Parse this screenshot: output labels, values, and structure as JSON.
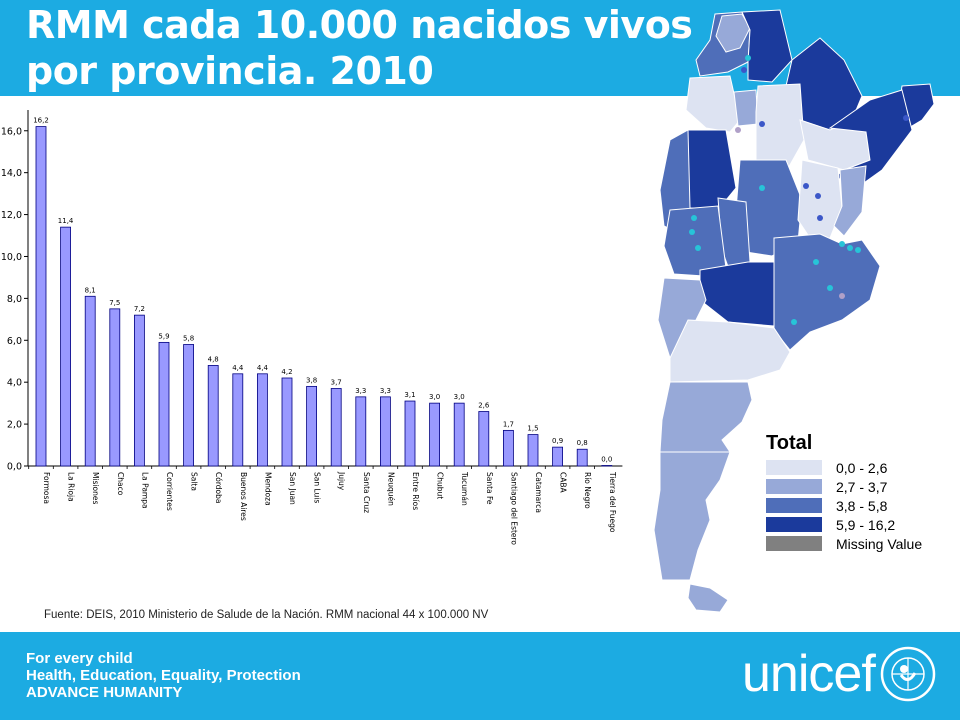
{
  "title": {
    "line1": "RMM cada 10.000 nacidos vivos",
    "line2": "por provincia. 2010"
  },
  "chart_data": {
    "type": "bar",
    "categories": [
      "Formosa",
      "La Rioja",
      "Misiones",
      "Chaco",
      "La Pampa",
      "Corrientes",
      "Salta",
      "Córdoba",
      "Buenos Aires",
      "Mendoza",
      "San Juan",
      "San Luis",
      "Jujuy",
      "Santa Cruz",
      "Neuquén",
      "Entre Ríos",
      "Chubut",
      "Tucumán",
      "Santa Fe",
      "Santiago del Estero",
      "Catamarca",
      "CABA",
      "Río Negro",
      "Tierra del Fuego"
    ],
    "values": [
      16.2,
      11.4,
      8.1,
      7.5,
      7.2,
      5.9,
      5.8,
      4.8,
      4.4,
      4.4,
      4.2,
      3.8,
      3.7,
      3.3,
      3.3,
      3.1,
      3.0,
      3.0,
      2.6,
      1.7,
      1.5,
      0.9,
      0.8,
      0.0
    ],
    "value_labels": [
      "16,2",
      "11,4",
      "8,1",
      "7,5",
      "7,2",
      "5,9",
      "5,8",
      "4,8",
      "4,4",
      "4,4",
      "4,2",
      "3,8",
      "3,7",
      "3,3",
      "3,3",
      "3,1",
      "3,0",
      "3,0",
      "2,6",
      "1,7",
      "1,5",
      "0,9",
      "0,8",
      "0,0"
    ],
    "yticks": [
      "0,0",
      "2,0",
      "4,0",
      "6,0",
      "8,0",
      "10,0",
      "12,0",
      "14,0",
      "16,0"
    ],
    "ylim": [
      0,
      16.8
    ],
    "grid": false,
    "bar_color": "#9999ff",
    "bar_edge": "#000080"
  },
  "map": {
    "legend_title": "Total",
    "legend": [
      {
        "label": "0,0 - 2,6",
        "color": "#dde3f2"
      },
      {
        "label": "2,7 - 3,7",
        "color": "#97a9d8"
      },
      {
        "label": "3,8 - 5,8",
        "color": "#4f6eb9"
      },
      {
        "label": "5,9 - 16,2",
        "color": "#1b3a9c"
      },
      {
        "label": "Missing Value",
        "color": "#808080"
      }
    ]
  },
  "source": "Fuente: DEIS, 2010 Ministerio de Salude de la Nación. RMM nacional 44 x 100.000 NV",
  "footer": {
    "tagline": [
      "For every child",
      "Health, Education, Equality, Protection",
      "ADVANCE HUMANITY"
    ],
    "logo": "unicef",
    "header_color": "#1cabe2"
  }
}
